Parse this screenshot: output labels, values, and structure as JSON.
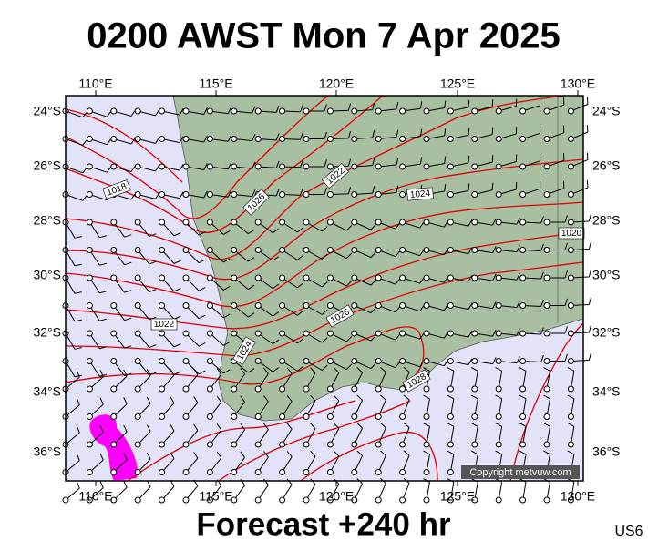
{
  "title": "0200 AWST Mon 7 Apr 2025",
  "footer": "Forecast +240 hr",
  "code": "US6",
  "copyright": "Copyright metvuw.com",
  "lon_labels": [
    "110°E",
    "115°E",
    "120°E",
    "125°E",
    "130°E"
  ],
  "lat_labels": [
    "24°S",
    "26°S",
    "28°S",
    "30°S",
    "32°S",
    "34°S",
    "36°S"
  ],
  "isobar_labels": [
    "1018",
    "1026",
    "1022",
    "1024",
    "1020",
    "1022",
    "1026",
    "1024",
    "1028"
  ]
}
